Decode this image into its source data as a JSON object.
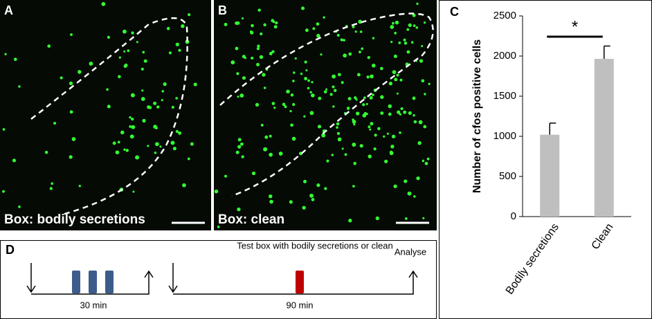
{
  "panels": {
    "a": {
      "label": "A",
      "caption": "Box: bodily secretions"
    },
    "b": {
      "label": "B",
      "caption": "Box: clean"
    }
  },
  "chart_data": {
    "type": "bar",
    "label": "C",
    "y_label": "Number of cfos positive cells",
    "categories": [
      "Bodily secretions",
      "Clean"
    ],
    "values": [
      1020,
      1965
    ],
    "errors": [
      145,
      160
    ],
    "color": "#bfbfbf",
    "ylim": [
      0,
      2500
    ],
    "yticks": [
      0,
      500,
      1000,
      1500,
      2000,
      2500
    ],
    "significance": "*"
  },
  "timeline": {
    "label": "D",
    "title": "Test box with bodily secretions or clean",
    "end_label": "Analyse",
    "durations": [
      "30 min",
      "90 min"
    ]
  }
}
